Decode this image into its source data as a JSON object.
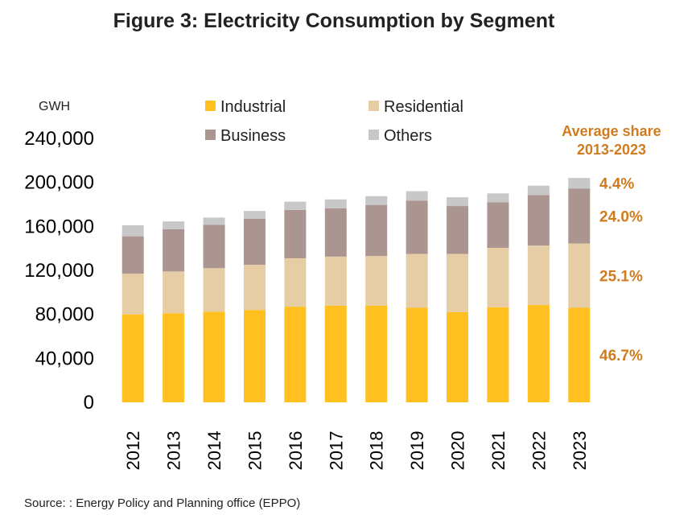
{
  "chart_data": {
    "type": "bar",
    "stacked": true,
    "title": "Figure 3: Electricity Consumption by Segment",
    "ylabel": "GWH",
    "ylim": [
      0,
      240000
    ],
    "yticks": [
      0,
      40000,
      80000,
      120000,
      160000,
      200000,
      240000
    ],
    "ytick_labels": [
      "0",
      "40,000",
      "80,000",
      "120,000",
      "160,000",
      "200,000",
      "240,000"
    ],
    "grid": false,
    "legend_position": "top",
    "categories": [
      "2012",
      "2013",
      "2014",
      "2015",
      "2016",
      "2017",
      "2018",
      "2019",
      "2020",
      "2021",
      "2022",
      "2023"
    ],
    "series": [
      {
        "name": "Industrial",
        "color": "#ffc020",
        "values": [
          80000,
          81000,
          82500,
          84000,
          87000,
          88000,
          88000,
          86000,
          82000,
          86500,
          88500,
          86000
        ]
      },
      {
        "name": "Residential",
        "color": "#e6cda5",
        "values": [
          37000,
          38000,
          39500,
          41000,
          44000,
          44500,
          45000,
          49000,
          53000,
          54000,
          54000,
          58500
        ]
      },
      {
        "name": "Business",
        "color": "#ab9590",
        "values": [
          34000,
          38500,
          39500,
          42000,
          44000,
          44000,
          46500,
          48500,
          43500,
          41500,
          46000,
          50000
        ]
      },
      {
        "name": "Others",
        "color": "#c8c8c8",
        "values": [
          10000,
          7000,
          6500,
          7000,
          7500,
          8000,
          8000,
          8500,
          8000,
          8000,
          8500,
          9500
        ]
      }
    ],
    "annotation": {
      "title": "Average share\n2013-2023",
      "title_lines": [
        "Average share",
        "2013-2023"
      ],
      "shares": [
        {
          "series": "Others",
          "label": "4.4%"
        },
        {
          "series": "Business",
          "label": "24.0%"
        },
        {
          "series": "Residential",
          "label": "25.1%"
        },
        {
          "series": "Industrial",
          "label": "46.7%"
        }
      ]
    }
  },
  "source": "Source: : Energy Policy and Planning office (EPPO)"
}
